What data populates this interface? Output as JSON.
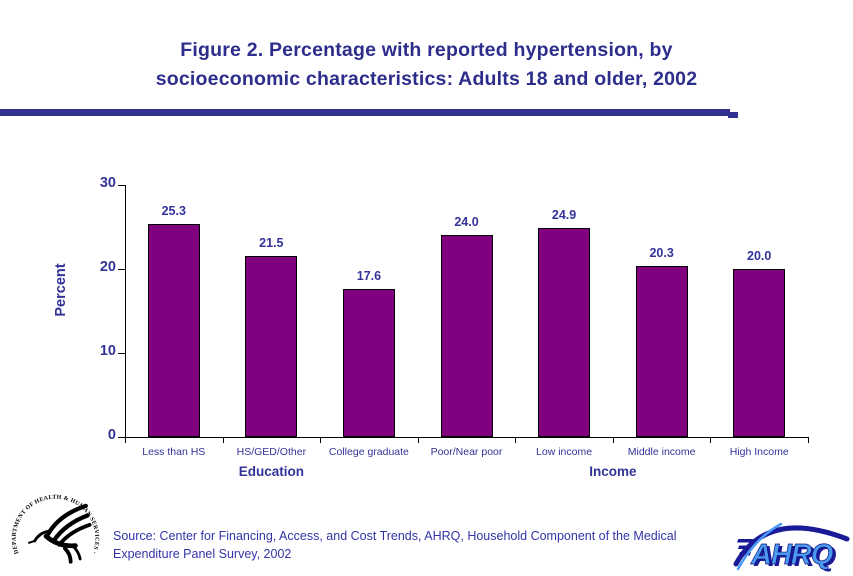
{
  "title": {
    "line1": "Figure 2. Percentage with reported hypertension, by",
    "line2": "socioeconomic characteristics: Adults 18 and older, 2002"
  },
  "chart_data": {
    "type": "bar",
    "categories": [
      "Less than HS",
      "HS/GED/Other",
      "College graduate",
      "Poor/Near poor",
      "Low income",
      "Middle income",
      "High Income"
    ],
    "values": [
      25.3,
      21.5,
      17.6,
      24.0,
      24.9,
      20.3,
      20.0
    ],
    "value_labels": [
      "25.3",
      "21.5",
      "17.6",
      "24.0",
      "24.9",
      "20.3",
      "20.0"
    ],
    "groups": [
      {
        "label": "Education",
        "from": 0,
        "to": 2
      },
      {
        "label": "Income",
        "from": 3,
        "to": 6
      }
    ],
    "title": "Figure 2. Percentage with reported hypertension, by socioeconomic characteristics: Adults 18 and older, 2002",
    "xlabel": "",
    "ylabel": "Percent",
    "ylim": [
      0,
      30
    ],
    "yticks": [
      0,
      10,
      20,
      30
    ],
    "grid": "off",
    "legend": "none",
    "bar_color": "#800080"
  },
  "source": {
    "text": "Source: Center for Financing, Access, and Cost Trends, AHRQ, Household Component of the Medical Expenditure Panel Survey, 2002"
  },
  "logos": {
    "hhs": {
      "seal_text": "DEPARTMENT OF HEALTH & HUMAN SERVICES · USA"
    },
    "ahrq": {
      "text": "AHRQ"
    }
  },
  "colors": {
    "title": "#2d2d8c",
    "divider": "#31318f",
    "labels": "#333399",
    "bar": "#800080",
    "bar_border": "#000000",
    "source": "#3434a8",
    "axis": "#000000"
  }
}
